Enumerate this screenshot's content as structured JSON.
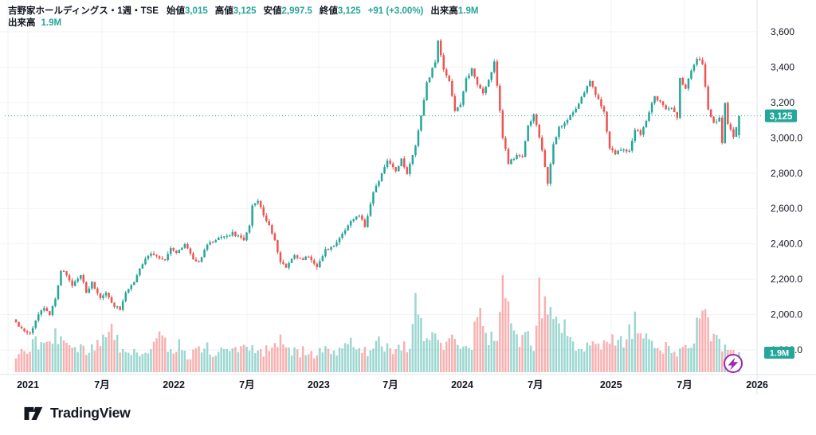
{
  "header": {
    "title": "吉野家ホールディングス・1週・TSE",
    "fields": [
      {
        "label": "始値",
        "value": "3,015"
      },
      {
        "label": "高値",
        "value": "3,125"
      },
      {
        "label": "安値",
        "value": "2,997.5"
      },
      {
        "label": "終値",
        "value": "3,125"
      }
    ],
    "change": "+91 (+3.00%)",
    "volume_label": "出来高",
    "volume_value": "1.9M",
    "row2_label": "出来高",
    "row2_value": "1.9M"
  },
  "colors": {
    "up": "#26a69a",
    "down": "#ef5350",
    "volume_up": "rgba(38,166,154,0.45)",
    "volume_down": "rgba(239,83,80,0.45)",
    "grid": "#f0f2f6",
    "axis_border": "#e0e3eb",
    "axis_text": "#131722",
    "badge_bg": "#26a69a",
    "badge_text": "#ffffff",
    "price_line": "#26a69a",
    "boost_purple": "#9c27b0",
    "background": "#ffffff"
  },
  "y_axis": {
    "ticks": [
      {
        "label": "3,600",
        "price": 3600
      },
      {
        "label": "3,400",
        "price": 3400
      },
      {
        "label": "3,200",
        "price": 3200
      },
      {
        "label": "3,000.0",
        "price": 3000
      },
      {
        "label": "2,800.0",
        "price": 2800
      },
      {
        "label": "2,600.0",
        "price": 2600
      },
      {
        "label": "2,400.0",
        "price": 2400
      },
      {
        "label": "2,200.0",
        "price": 2200
      },
      {
        "label": "2,000.0",
        "price": 2000
      },
      {
        "label": "1,800.0",
        "price": 1800
      }
    ]
  },
  "x_axis": {
    "ticks": [
      {
        "label": "2021",
        "week": 4.25
      },
      {
        "label": "7月",
        "week": 30.6
      },
      {
        "label": "2022",
        "week": 56.1
      },
      {
        "label": "7月",
        "week": 82.1
      },
      {
        "label": "2023",
        "week": 107.6
      },
      {
        "label": "7月",
        "week": 133.1
      },
      {
        "label": "2024",
        "week": 158.6
      },
      {
        "label": "7月",
        "week": 184.6
      },
      {
        "label": "2025",
        "week": 211.5
      },
      {
        "label": "7月",
        "week": 237.6
      },
      {
        "label": "2026",
        "week": 263.4
      }
    ],
    "extra_gridline_week": -2.8
  },
  "price_line_badge": {
    "label": "3,125",
    "price": 3125
  },
  "volume_badge": {
    "label": "1.9M",
    "behind_tick": "1,800.0"
  },
  "footer": {
    "brand": "TradingView"
  },
  "chart_data": {
    "type": "candlestick_with_volume",
    "title": "吉野家ホールディングス・1週・TSE",
    "symbol": "吉野家ホールディングス",
    "interval": "1週",
    "exchange": "TSE",
    "weeks": 258,
    "ylim": [
      1800,
      3650
    ],
    "current_price": 3125,
    "last_candle": {
      "open": 3015,
      "high": 3125,
      "low": 2997.5,
      "close": 3125
    },
    "last_volume_M": 1.9,
    "legend_position": "top-left",
    "grid": true,
    "price_anchors": [
      [
        0,
        1960
      ],
      [
        2,
        1915
      ],
      [
        5,
        1890
      ],
      [
        8,
        2000
      ],
      [
        10,
        2045
      ],
      [
        12,
        1995
      ],
      [
        14,
        2090
      ],
      [
        16,
        2250
      ],
      [
        18,
        2230
      ],
      [
        20,
        2165
      ],
      [
        23,
        2230
      ],
      [
        25,
        2120
      ],
      [
        27,
        2185
      ],
      [
        30,
        2095
      ],
      [
        32,
        2125
      ],
      [
        34,
        2060
      ],
      [
        37,
        2030
      ],
      [
        39,
        2120
      ],
      [
        42,
        2185
      ],
      [
        45,
        2290
      ],
      [
        48,
        2345
      ],
      [
        50,
        2330
      ],
      [
        53,
        2305
      ],
      [
        55,
        2380
      ],
      [
        57,
        2350
      ],
      [
        60,
        2400
      ],
      [
        63,
        2315
      ],
      [
        65,
        2290
      ],
      [
        68,
        2400
      ],
      [
        72,
        2430
      ],
      [
        75,
        2450
      ],
      [
        77,
        2460
      ],
      [
        81,
        2420
      ],
      [
        83,
        2500
      ],
      [
        84,
        2620
      ],
      [
        86,
        2640
      ],
      [
        88,
        2565
      ],
      [
        90,
        2500
      ],
      [
        92,
        2420
      ],
      [
        94,
        2300
      ],
      [
        96,
        2270
      ],
      [
        99,
        2330
      ],
      [
        102,
        2315
      ],
      [
        104,
        2325
      ],
      [
        107,
        2270
      ],
      [
        110,
        2365
      ],
      [
        113,
        2385
      ],
      [
        116,
        2455
      ],
      [
        119,
        2525
      ],
      [
        122,
        2565
      ],
      [
        124,
        2500
      ],
      [
        127,
        2685
      ],
      [
        130,
        2795
      ],
      [
        132,
        2870
      ],
      [
        135,
        2805
      ],
      [
        137,
        2885
      ],
      [
        139,
        2795
      ],
      [
        142,
        2960
      ],
      [
        144,
        3130
      ],
      [
        146,
        3310
      ],
      [
        149,
        3430
      ],
      [
        150,
        3555
      ],
      [
        152,
        3390
      ],
      [
        154,
        3325
      ],
      [
        156,
        3145
      ],
      [
        158,
        3185
      ],
      [
        160,
        3335
      ],
      [
        162,
        3385
      ],
      [
        164,
        3305
      ],
      [
        166,
        3255
      ],
      [
        168,
        3325
      ],
      [
        170,
        3430
      ],
      [
        173,
        3005
      ],
      [
        175,
        2855
      ],
      [
        178,
        2905
      ],
      [
        180,
        2885
      ],
      [
        182,
        3065
      ],
      [
        184,
        3135
      ],
      [
        187,
        2935
      ],
      [
        189,
        2745
      ],
      [
        191,
        2965
      ],
      [
        193,
        3055
      ],
      [
        195,
        3085
      ],
      [
        197,
        3125
      ],
      [
        200,
        3195
      ],
      [
        202,
        3255
      ],
      [
        204,
        3320
      ],
      [
        206,
        3245
      ],
      [
        209,
        3145
      ],
      [
        211,
        2940
      ],
      [
        213,
        2915
      ],
      [
        215,
        2935
      ],
      [
        218,
        2920
      ],
      [
        220,
        3050
      ],
      [
        222,
        3020
      ],
      [
        224,
        3100
      ],
      [
        227,
        3240
      ],
      [
        229,
        3200
      ],
      [
        231,
        3160
      ],
      [
        233,
        3170
      ],
      [
        235,
        3115
      ],
      [
        236,
        3340
      ],
      [
        238,
        3275
      ],
      [
        240,
        3380
      ],
      [
        242,
        3450
      ],
      [
        244,
        3420
      ],
      [
        246,
        3155
      ],
      [
        248,
        3085
      ],
      [
        250,
        3110
      ],
      [
        251,
        2975
      ],
      [
        252,
        3190
      ],
      [
        253,
        3080
      ],
      [
        255,
        3010
      ],
      [
        257,
        3125
      ]
    ],
    "volume_anchors_M": [
      [
        0,
        1.6
      ],
      [
        5,
        2.6
      ],
      [
        10,
        2.9
      ],
      [
        15,
        3.4
      ],
      [
        20,
        2.2
      ],
      [
        25,
        2.0
      ],
      [
        30,
        3.0
      ],
      [
        33,
        4.4
      ],
      [
        37,
        2.3
      ],
      [
        40,
        1.7
      ],
      [
        45,
        2.0
      ],
      [
        48,
        2.4
      ],
      [
        52,
        3.3
      ],
      [
        55,
        2.1
      ],
      [
        58,
        2.7
      ],
      [
        61,
        1.6
      ],
      [
        64,
        1.9
      ],
      [
        68,
        2.4
      ],
      [
        71,
        1.7
      ],
      [
        75,
        2.3
      ],
      [
        78,
        2.0
      ],
      [
        81,
        2.6
      ],
      [
        84,
        2.2
      ],
      [
        88,
        1.8
      ],
      [
        91,
        2.4
      ],
      [
        94,
        3.1
      ],
      [
        97,
        2.2
      ],
      [
        100,
        1.8
      ],
      [
        103,
        2.1
      ],
      [
        106,
        1.6
      ],
      [
        110,
        2.0
      ],
      [
        113,
        1.7
      ],
      [
        116,
        2.3
      ],
      [
        119,
        2.6
      ],
      [
        122,
        2.1
      ],
      [
        125,
        1.8
      ],
      [
        128,
        2.8
      ],
      [
        131,
        2.4
      ],
      [
        134,
        2.0
      ],
      [
        137,
        2.6
      ],
      [
        140,
        2.2
      ],
      [
        142,
        6.8
      ],
      [
        145,
        3.0
      ],
      [
        148,
        4.6
      ],
      [
        150,
        3.5
      ],
      [
        153,
        2.6
      ],
      [
        156,
        3.1
      ],
      [
        159,
        2.3
      ],
      [
        162,
        2.8
      ],
      [
        165,
        7.0
      ],
      [
        168,
        3.2
      ],
      [
        171,
        4.0
      ],
      [
        173,
        8.9
      ],
      [
        176,
        4.2
      ],
      [
        179,
        2.7
      ],
      [
        182,
        3.4
      ],
      [
        184,
        2.5
      ],
      [
        186,
        7.3
      ],
      [
        188,
        5.7
      ],
      [
        190,
        5.8
      ],
      [
        193,
        6.0
      ],
      [
        196,
        2.9
      ],
      [
        199,
        2.3
      ],
      [
        202,
        2.7
      ],
      [
        205,
        3.1
      ],
      [
        208,
        2.4
      ],
      [
        211,
        3.3
      ],
      [
        214,
        2.6
      ],
      [
        217,
        2.9
      ],
      [
        220,
        4.9
      ],
      [
        223,
        3.4
      ],
      [
        226,
        2.8
      ],
      [
        229,
        2.2
      ],
      [
        232,
        2.5
      ],
      [
        235,
        2.0
      ],
      [
        238,
        2.9
      ],
      [
        241,
        3.3
      ],
      [
        244,
        8.0
      ],
      [
        247,
        3.6
      ],
      [
        250,
        2.8
      ],
      [
        253,
        2.2
      ],
      [
        255,
        1.8
      ],
      [
        257,
        1.9
      ]
    ]
  }
}
